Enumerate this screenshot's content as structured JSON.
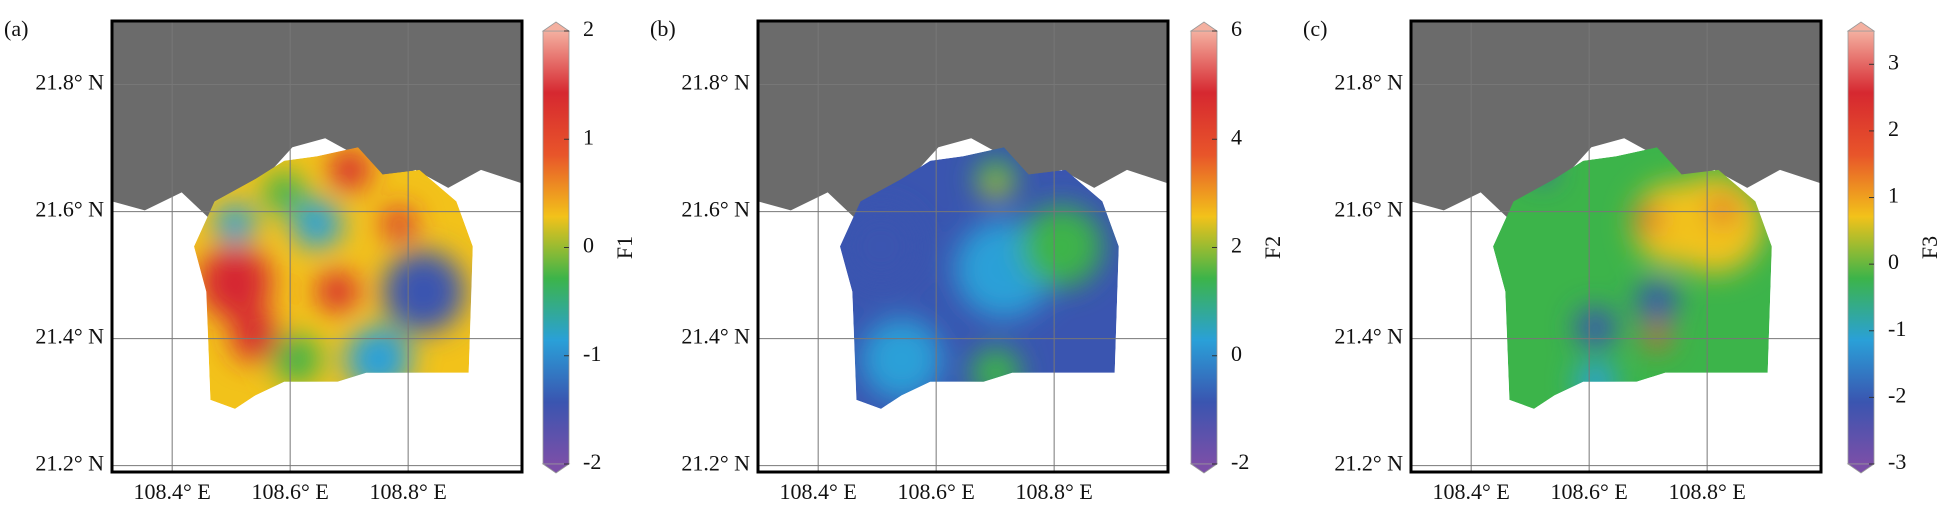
{
  "chart_data": [
    {
      "type": "heatmap",
      "panel_label": "(a)",
      "colorbar_label": "F1",
      "xlim": [
        108.298,
        108.993
      ],
      "ylim": [
        21.19,
        21.9
      ],
      "xticks": [
        {
          "value": 108.4,
          "label": "108.4° E"
        },
        {
          "value": 108.6,
          "label": "108.6° E"
        },
        {
          "value": 108.8,
          "label": "108.8° E"
        }
      ],
      "yticks": [
        {
          "value": 21.2,
          "label": "21.2° N"
        },
        {
          "value": 21.4,
          "label": "21.4° N"
        },
        {
          "value": 21.6,
          "label": "21.6° N"
        },
        {
          "value": 21.8,
          "label": "21.8° N"
        }
      ],
      "clim": [
        -2,
        2
      ],
      "cticks": [
        -2,
        -1,
        0,
        1,
        2
      ],
      "grid": true,
      "colormap": [
        "#7b4fa8",
        "#3a55b0",
        "#2aa0d8",
        "#3cb44a",
        "#f2c21a",
        "#e8552a",
        "#d62830",
        "#f4b0a0"
      ]
    },
    {
      "type": "heatmap",
      "panel_label": "(b)",
      "colorbar_label": "F2",
      "xlim": [
        108.298,
        108.993
      ],
      "ylim": [
        21.19,
        21.9
      ],
      "xticks": [
        {
          "value": 108.4,
          "label": "108.4° E"
        },
        {
          "value": 108.6,
          "label": "108.6° E"
        },
        {
          "value": 108.8,
          "label": "108.8° E"
        }
      ],
      "yticks": [
        {
          "value": 21.2,
          "label": "21.2° N"
        },
        {
          "value": 21.4,
          "label": "21.4° N"
        },
        {
          "value": 21.6,
          "label": "21.6° N"
        },
        {
          "value": 21.8,
          "label": "21.8° N"
        }
      ],
      "clim": [
        -2,
        6
      ],
      "cticks": [
        -2,
        0,
        2,
        4,
        6
      ],
      "grid": true,
      "colormap": [
        "#7b4fa8",
        "#3a55b0",
        "#2aa0d8",
        "#3cb44a",
        "#f2c21a",
        "#e8552a",
        "#d62830",
        "#f4b0a0"
      ]
    },
    {
      "type": "heatmap",
      "panel_label": "(c)",
      "colorbar_label": "F3",
      "xlim": [
        108.298,
        108.993
      ],
      "ylim": [
        21.19,
        21.9
      ],
      "xticks": [
        {
          "value": 108.4,
          "label": "108.4° E"
        },
        {
          "value": 108.6,
          "label": "108.6° E"
        },
        {
          "value": 108.8,
          "label": "108.8° E"
        }
      ],
      "yticks": [
        {
          "value": 21.2,
          "label": "21.2° N"
        },
        {
          "value": 21.4,
          "label": "21.4° N"
        },
        {
          "value": 21.6,
          "label": "21.6° N"
        },
        {
          "value": 21.8,
          "label": "21.8° N"
        }
      ],
      "clim": [
        -3,
        3.5
      ],
      "cticks": [
        -3,
        -2,
        -1,
        0,
        1,
        2,
        3
      ],
      "grid": true,
      "colormap": [
        "#7b4fa8",
        "#3a55b0",
        "#2aa0d8",
        "#3cb44a",
        "#f2c21a",
        "#e8552a",
        "#d62830",
        "#f4b0a0"
      ]
    }
  ]
}
